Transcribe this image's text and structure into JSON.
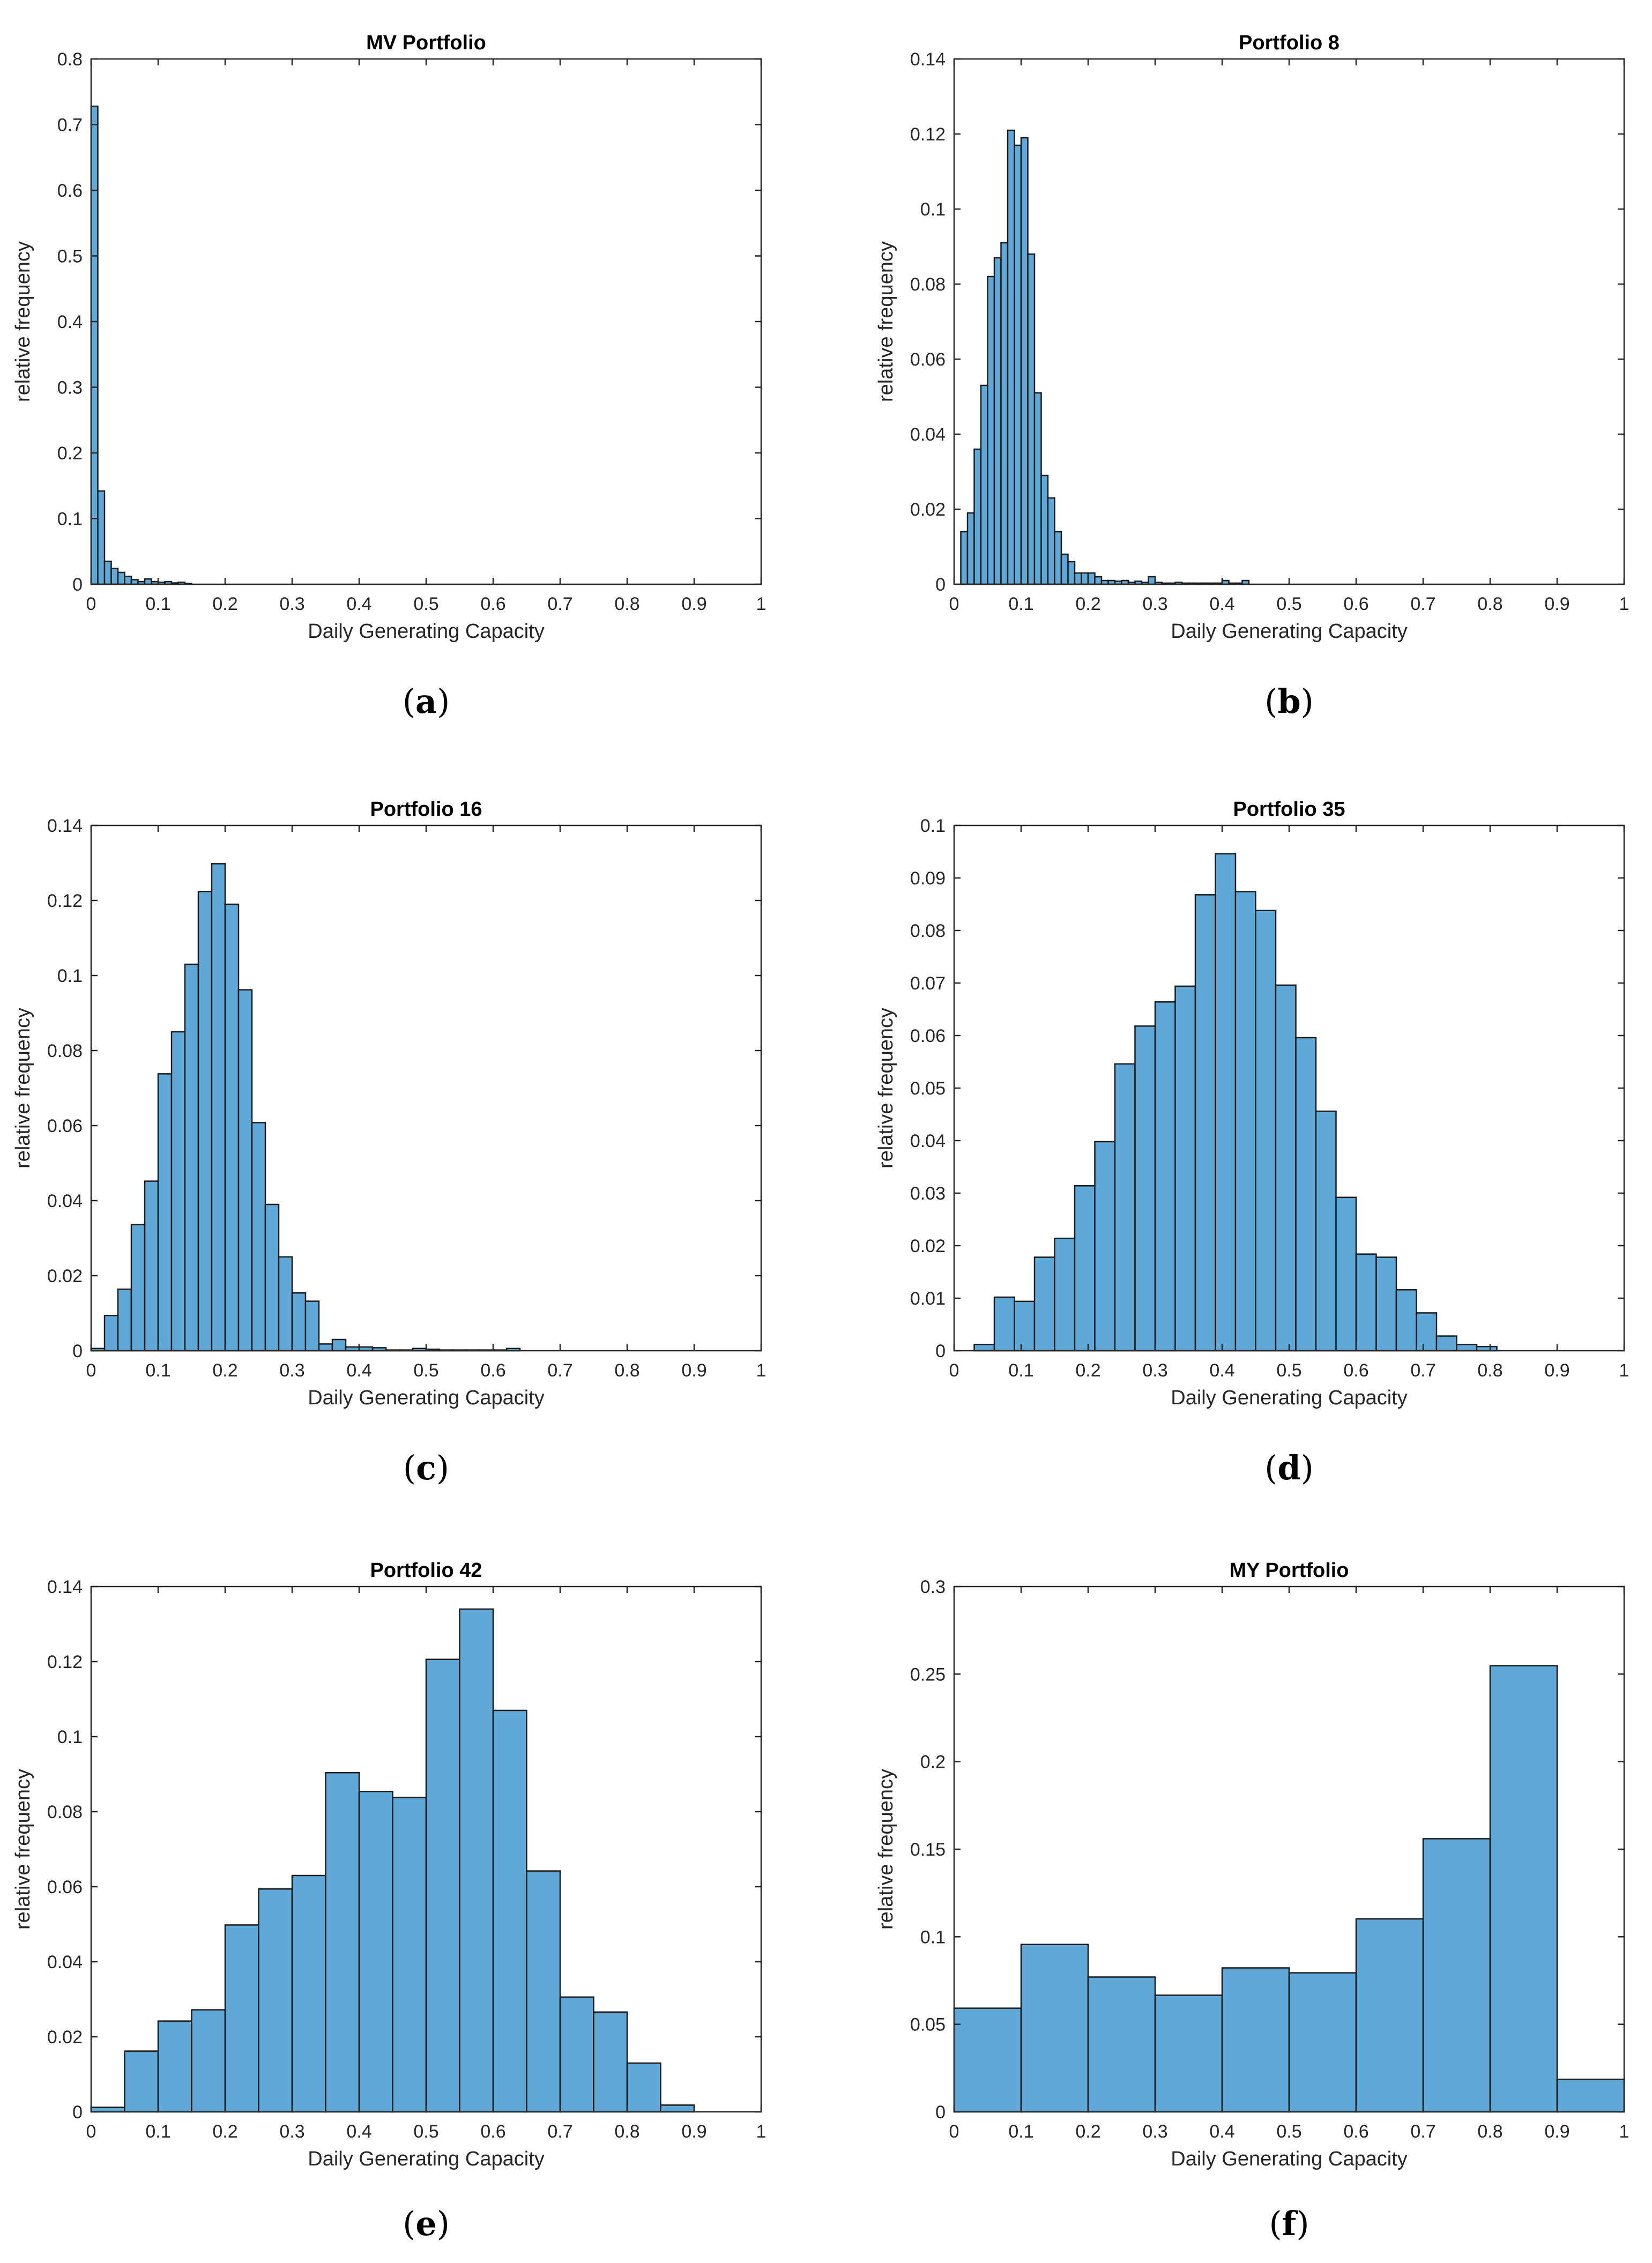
{
  "figure": {
    "bar_color": "#5fa8d8",
    "edge_color": "#1a1a1a",
    "xticks": [
      "0",
      "0.1",
      "0.2",
      "0.3",
      "0.4",
      "0.5",
      "0.6",
      "0.7",
      "0.8",
      "0.9",
      "1"
    ]
  },
  "chart_data": [
    {
      "type": "bar",
      "panel_label": "a",
      "title": "MV Portfolio",
      "xlabel": "Daily Generating Capacity",
      "ylabel": "relative frequency",
      "xlim": [
        0,
        1
      ],
      "ylim": [
        0,
        0.8
      ],
      "yticks": [
        "0",
        "0.1",
        "0.2",
        "0.3",
        "0.4",
        "0.5",
        "0.6",
        "0.7",
        "0.8"
      ],
      "bin_start": 0,
      "bin_width": 0.01,
      "values": [
        0.728,
        0.142,
        0.035,
        0.024,
        0.018,
        0.012,
        0.007,
        0.004,
        0.008,
        0.004,
        0.003,
        0.004,
        0.002,
        0.003,
        0.001
      ]
    },
    {
      "type": "bar",
      "panel_label": "b",
      "title": "Portfolio 8",
      "xlabel": "Daily Generating Capacity",
      "ylabel": "relative frequency",
      "xlim": [
        0,
        1
      ],
      "ylim": [
        0,
        0.14
      ],
      "yticks": [
        "0",
        "0.02",
        "0.04",
        "0.06",
        "0.08",
        "0.1",
        "0.12",
        "0.14"
      ],
      "bin_start": 0.01,
      "bin_width": 0.01,
      "values": [
        0.014,
        0.019,
        0.036,
        0.053,
        0.082,
        0.087,
        0.091,
        0.121,
        0.117,
        0.119,
        0.088,
        0.051,
        0.029,
        0.023,
        0.014,
        0.008,
        0.006,
        0.003,
        0.003,
        0.003,
        0.002,
        0.001,
        0.001,
        0.0008,
        0.001,
        0.0005,
        0.0008,
        0.0005,
        0.002,
        0.0005,
        0.0003,
        0.0003,
        0.0005,
        0.0003,
        0.0003,
        0.0003,
        0.0003,
        0.0003,
        0.0003,
        0.001,
        0.0003,
        0.0003,
        0.001
      ]
    },
    {
      "type": "bar",
      "panel_label": "c",
      "title": "Portfolio 16",
      "xlabel": "Daily Generating Capacity",
      "ylabel": "relative frequency",
      "xlim": [
        0,
        1
      ],
      "ylim": [
        0,
        0.14
      ],
      "yticks": [
        "0",
        "0.02",
        "0.04",
        "0.06",
        "0.08",
        "0.1",
        "0.12",
        "0.14"
      ],
      "bin_start": 0.0,
      "bin_width": 0.02,
      "values": [
        0.0006,
        0.0094,
        0.0164,
        0.0336,
        0.0452,
        0.0738,
        0.085,
        0.103,
        0.1224,
        0.1298,
        0.119,
        0.0962,
        0.0608,
        0.039,
        0.025,
        0.0154,
        0.0132,
        0.0018,
        0.003,
        0.001,
        0.001,
        0.0008,
        0.0002,
        0.0002,
        0.0006,
        0.0004,
        0.0002,
        0.0002,
        0.0002,
        0.0002,
        0.0002,
        0.0006
      ]
    },
    {
      "type": "bar",
      "panel_label": "d",
      "title": "Portfolio 35",
      "xlabel": "Daily Generating Capacity",
      "ylabel": "relative frequency",
      "xlim": [
        0,
        1
      ],
      "ylim": [
        0,
        0.1
      ],
      "yticks": [
        "0",
        "0.01",
        "0.02",
        "0.03",
        "0.04",
        "0.05",
        "0.06",
        "0.07",
        "0.08",
        "0.09",
        "0.1"
      ],
      "bin_start": 0.0,
      "bin_width": 0.03,
      "values": [
        0.0,
        0.0012,
        0.0102,
        0.0094,
        0.0178,
        0.0214,
        0.0314,
        0.0398,
        0.0546,
        0.0618,
        0.0664,
        0.0694,
        0.0868,
        0.0946,
        0.0874,
        0.0838,
        0.0696,
        0.0596,
        0.0456,
        0.0292,
        0.0184,
        0.0178,
        0.0116,
        0.0072,
        0.0028,
        0.0012,
        0.0008
      ]
    },
    {
      "type": "bar",
      "panel_label": "e",
      "title": "Portfolio 42",
      "xlabel": "Daily Generating Capacity",
      "ylabel": "relative frequency",
      "xlim": [
        0,
        1
      ],
      "ylim": [
        0,
        0.14
      ],
      "yticks": [
        "0",
        "0.02",
        "0.04",
        "0.06",
        "0.08",
        "0.1",
        "0.12",
        "0.14"
      ],
      "bin_start": 0.0,
      "bin_width": 0.05,
      "values": [
        0.0012,
        0.0162,
        0.0242,
        0.0272,
        0.0498,
        0.0594,
        0.063,
        0.0904,
        0.0854,
        0.0838,
        0.1206,
        0.134,
        0.107,
        0.0642,
        0.0306,
        0.0266,
        0.013,
        0.0018
      ]
    },
    {
      "type": "bar",
      "panel_label": "f",
      "title": "MY Portfolio",
      "xlabel": "Daily Generating Capacity",
      "ylabel": "relative frequency",
      "xlim": [
        0,
        1
      ],
      "ylim": [
        0,
        0.3
      ],
      "yticks": [
        "0",
        "0.05",
        "0.1",
        "0.15",
        "0.2",
        "0.25",
        "0.3"
      ],
      "bin_start": 0.0,
      "bin_width": 0.1,
      "values": [
        0.0592,
        0.0956,
        0.077,
        0.0666,
        0.0822,
        0.0794,
        0.1102,
        0.156,
        0.2548,
        0.0186
      ]
    }
  ]
}
